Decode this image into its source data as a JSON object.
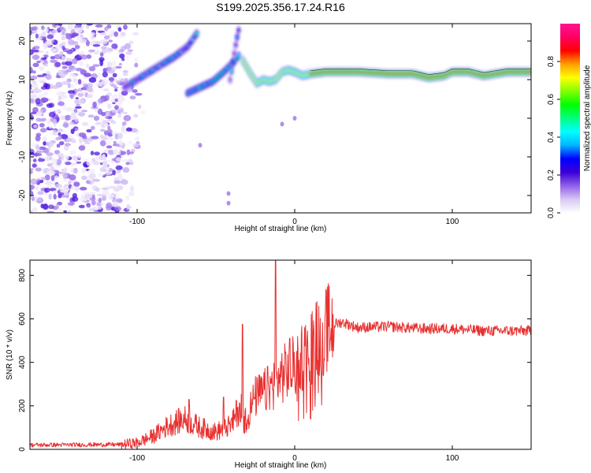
{
  "chart_data": [
    {
      "type": "heatmap",
      "title": "S199.2025.356.17.24.R16",
      "xlabel": "Height of straight line (km)",
      "ylabel": "Frequency (Hz)",
      "xlim": [
        -168,
        150
      ],
      "ylim": [
        -24.5,
        24.5
      ],
      "x_ticks": [
        -100,
        0,
        100
      ],
      "y_ticks": [
        -20,
        -10,
        0,
        10,
        20
      ],
      "colorbar": {
        "label": "Normalized spectral amplitude",
        "range": [
          0,
          1
        ],
        "ticks": [
          0.0,
          0.2,
          0.4,
          0.6,
          0.8
        ],
        "tick_labels": [
          "0.0",
          "0.2",
          "0.4",
          "0.6",
          "0.8"
        ],
        "colors": [
          "#ffffff",
          "#d8c8f4",
          "#9060e8",
          "#3a00d8",
          "#0000ff",
          "#00b4ff",
          "#00ffff",
          "#00ff80",
          "#00ff00",
          "#80ff00",
          "#ffff00",
          "#ffa000",
          "#ff0000",
          "#ff0060",
          "#ff1493"
        ]
      },
      "ridges": [
        {
          "name": "main-ridge",
          "x": [
            -33,
            -28,
            -24,
            -20,
            -16,
            -12,
            -8,
            -4,
            0,
            5,
            10,
            20,
            40,
            60,
            75,
            85,
            95,
            100,
            110,
            120,
            135,
            150
          ],
          "y": [
            15,
            11.5,
            9,
            10,
            9.5,
            10,
            12,
            12.5,
            12,
            11,
            11.5,
            12,
            12,
            11.5,
            11.5,
            10.5,
            11,
            12,
            12,
            11,
            12,
            12
          ],
          "amplitude": 0.85
        },
        {
          "name": "lower-rising-branch",
          "x": [
            -68,
            -60,
            -52,
            -45,
            -40,
            -35
          ],
          "y": [
            6.5,
            8,
            9.5,
            12,
            14,
            16.5
          ],
          "amplitude": 0.45
        },
        {
          "name": "upper-rising-branch",
          "x": [
            -108,
            -100,
            -92,
            -84,
            -76,
            -68,
            -62
          ],
          "y": [
            8,
            10,
            12,
            14,
            16,
            18.5,
            22
          ],
          "amplitude": 0.35
        },
        {
          "name": "steep-branch",
          "x": [
            -41,
            -39,
            -37,
            -35
          ],
          "y": [
            10,
            15,
            20,
            24
          ],
          "amplitude": 0.3
        }
      ]
    },
    {
      "type": "line",
      "title": "",
      "xlabel": "Height of straight line (km)",
      "ylabel": "SNR (10 * v/v)",
      "xlim": [
        -168,
        150
      ],
      "ylim": [
        0,
        870
      ],
      "x_ticks": [
        -100,
        0,
        100
      ],
      "y_ticks": [
        0,
        200,
        400,
        600,
        800
      ],
      "color": "#e83030",
      "trend": {
        "x": [
          -168,
          -110,
          -100,
          -90,
          -80,
          -70,
          -60,
          -50,
          -40,
          -35,
          -30,
          -25,
          -20,
          -15,
          -10,
          -5,
          0,
          5,
          10,
          15,
          20,
          25,
          30,
          40,
          60,
          80,
          100,
          120,
          150
        ],
        "y": [
          20,
          22,
          30,
          60,
          110,
          140,
          100,
          80,
          110,
          200,
          160,
          240,
          260,
          290,
          330,
          360,
          380,
          430,
          470,
          520,
          550,
          575,
          585,
          560,
          565,
          555,
          555,
          545,
          545
        ]
      },
      "spikes": [
        {
          "x": -67,
          "y": 230
        },
        {
          "x": -45,
          "y": 240
        },
        {
          "x": -33,
          "y": 575
        },
        {
          "x": -12,
          "y": 870
        },
        {
          "x": -3,
          "y": 510
        },
        {
          "x": 10,
          "y": 140
        }
      ]
    }
  ]
}
